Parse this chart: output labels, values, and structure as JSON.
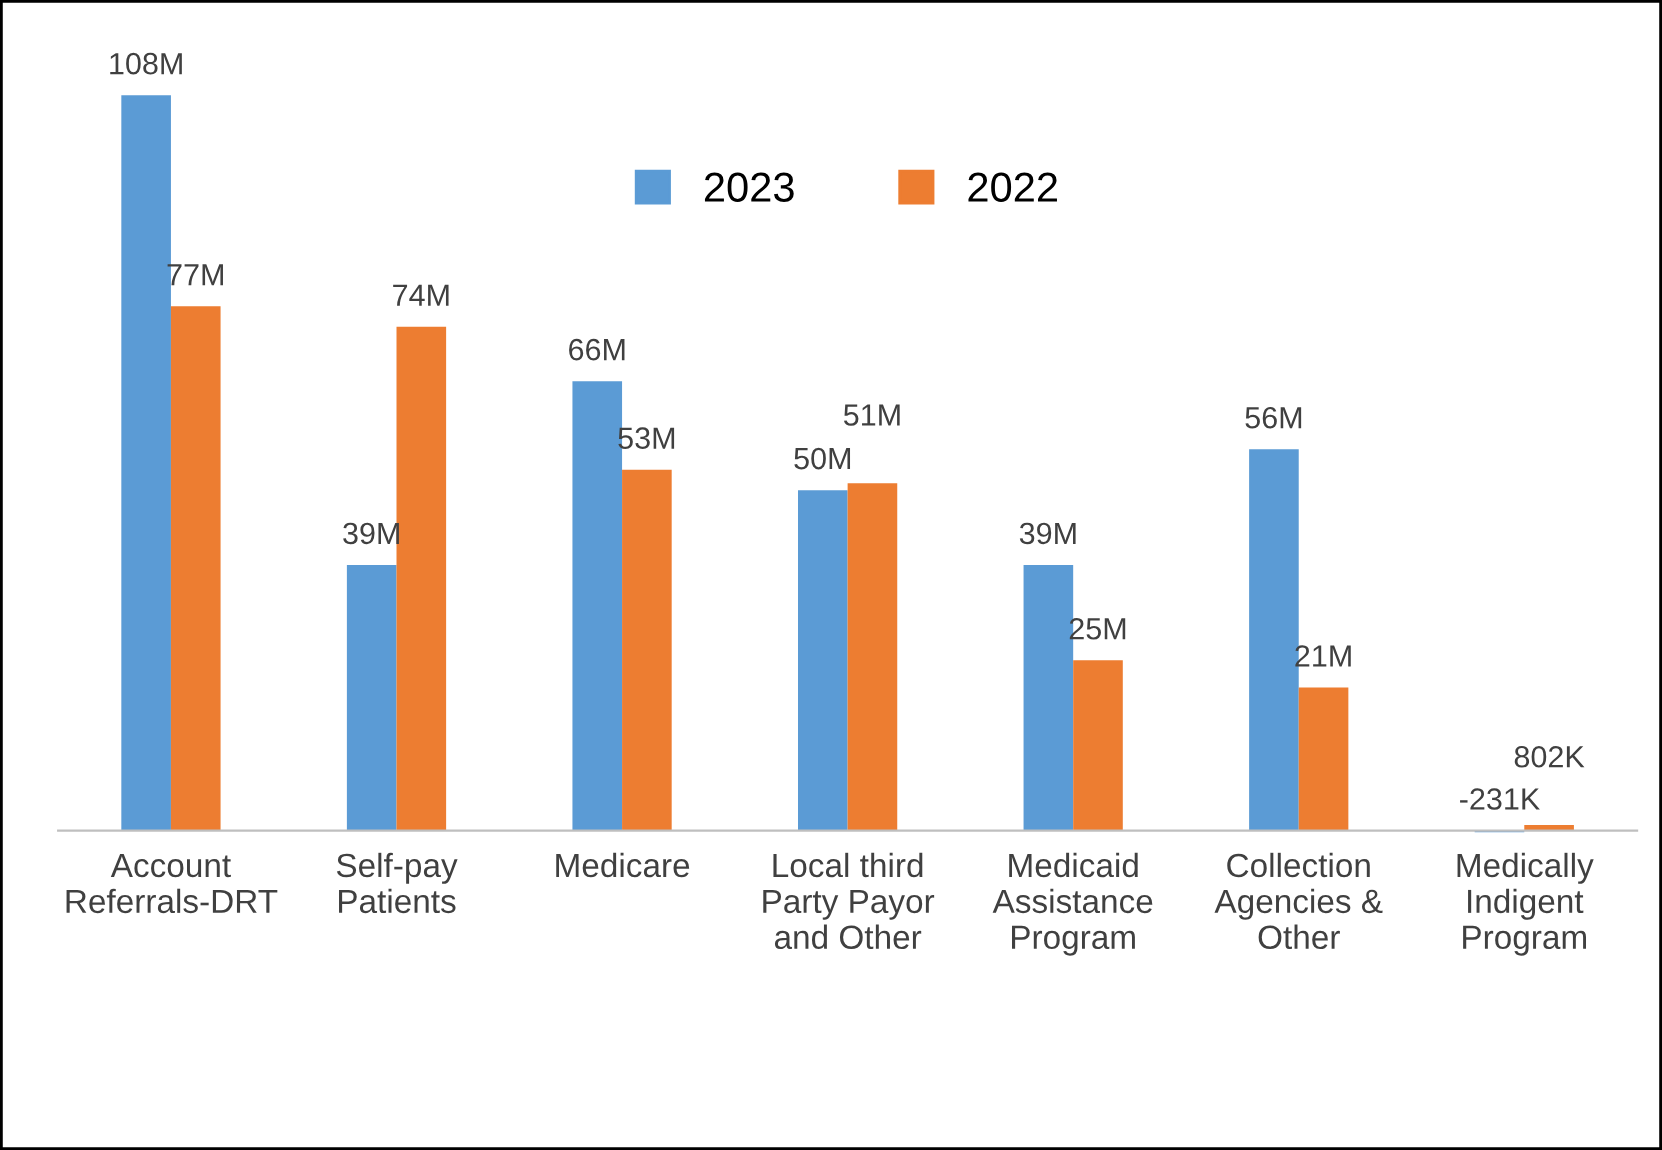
{
  "chart_data": {
    "type": "bar",
    "categories": [
      "Account\nReferrals-DRT",
      "Self-pay\nPatients",
      "Medicare",
      "Local third\nParty Payor\nand Other",
      "Medicaid\nAssistance\nProgram",
      "Collection\nAgencies &\nOther",
      "Medically\nIndigent\nProgram"
    ],
    "series": [
      {
        "name": "2023",
        "color": "#5b9bd5",
        "values": [
          108000000,
          39000000,
          66000000,
          50000000,
          39000000,
          56000000,
          -231000
        ],
        "value_labels": [
          "108M",
          "39M",
          "66M",
          "50M",
          "39M",
          "56M",
          "-231K"
        ]
      },
      {
        "name": "2022",
        "color": "#ed7d31",
        "values": [
          77000000,
          74000000,
          53000000,
          51000000,
          25000000,
          21000000,
          802000
        ],
        "value_labels": [
          "77M",
          "74M",
          "53M",
          "51M",
          "25M",
          "21M",
          "802K"
        ]
      }
    ],
    "legend": "top",
    "grid": false
  }
}
